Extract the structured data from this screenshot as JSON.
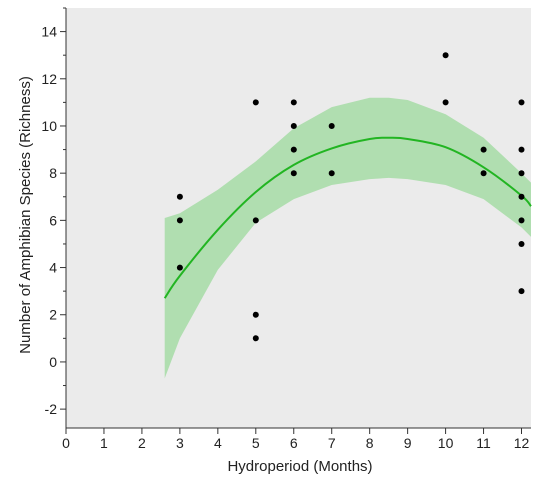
{
  "chart_data": {
    "type": "scatter",
    "xlabel": "Hydroperiod (Months)",
    "ylabel": "Number of Amphibian Species (Richness)",
    "xlim": [
      0,
      12.25
    ],
    "ylim": [
      -2.8,
      15
    ],
    "x_ticks": [
      0,
      1,
      2,
      3,
      4,
      5,
      6,
      7,
      8,
      9,
      10,
      11,
      12
    ],
    "y_ticks": [
      -2,
      0,
      2,
      4,
      6,
      8,
      10,
      12,
      14
    ],
    "grid": false,
    "points": [
      {
        "x": 3,
        "y": 7
      },
      {
        "x": 3,
        "y": 6
      },
      {
        "x": 3,
        "y": 4
      },
      {
        "x": 5,
        "y": 11
      },
      {
        "x": 5,
        "y": 6
      },
      {
        "x": 5,
        "y": 2
      },
      {
        "x": 5,
        "y": 1
      },
      {
        "x": 6,
        "y": 11
      },
      {
        "x": 6,
        "y": 10
      },
      {
        "x": 6,
        "y": 9
      },
      {
        "x": 6,
        "y": 8
      },
      {
        "x": 7,
        "y": 10
      },
      {
        "x": 7,
        "y": 8
      },
      {
        "x": 10,
        "y": 13
      },
      {
        "x": 10,
        "y": 11
      },
      {
        "x": 11,
        "y": 9
      },
      {
        "x": 11,
        "y": 8
      },
      {
        "x": 12,
        "y": 11
      },
      {
        "x": 12,
        "y": 9
      },
      {
        "x": 12,
        "y": 8
      },
      {
        "x": 12,
        "y": 7
      },
      {
        "x": 12,
        "y": 6
      },
      {
        "x": 12,
        "y": 5
      },
      {
        "x": 12,
        "y": 3
      }
    ],
    "fit_line": {
      "x": [
        2.6,
        3.0,
        4.0,
        5.0,
        6.0,
        7.0,
        8.0,
        8.5,
        9.0,
        10.0,
        11.0,
        12.0,
        12.25
      ],
      "y": [
        2.7,
        3.65,
        5.6,
        7.2,
        8.35,
        9.05,
        9.45,
        9.5,
        9.45,
        9.1,
        8.25,
        7.05,
        6.6
      ]
    },
    "confidence_band": {
      "x": [
        2.6,
        3.0,
        4.0,
        5.0,
        6.0,
        7.0,
        8.0,
        8.5,
        9.0,
        10.0,
        11.0,
        12.0,
        12.25
      ],
      "upper": [
        6.1,
        6.3,
        7.3,
        8.5,
        9.9,
        10.8,
        11.2,
        11.2,
        11.1,
        10.5,
        9.5,
        8.0,
        7.6
      ],
      "lower": [
        -0.7,
        1.0,
        3.9,
        5.9,
        6.9,
        7.5,
        7.75,
        7.8,
        7.75,
        7.5,
        6.9,
        5.7,
        5.3
      ]
    },
    "colors": {
      "plot_background": "#ebebeb",
      "fit_line": "#22b522",
      "band": "#a6dca6",
      "points": "#000000"
    }
  }
}
